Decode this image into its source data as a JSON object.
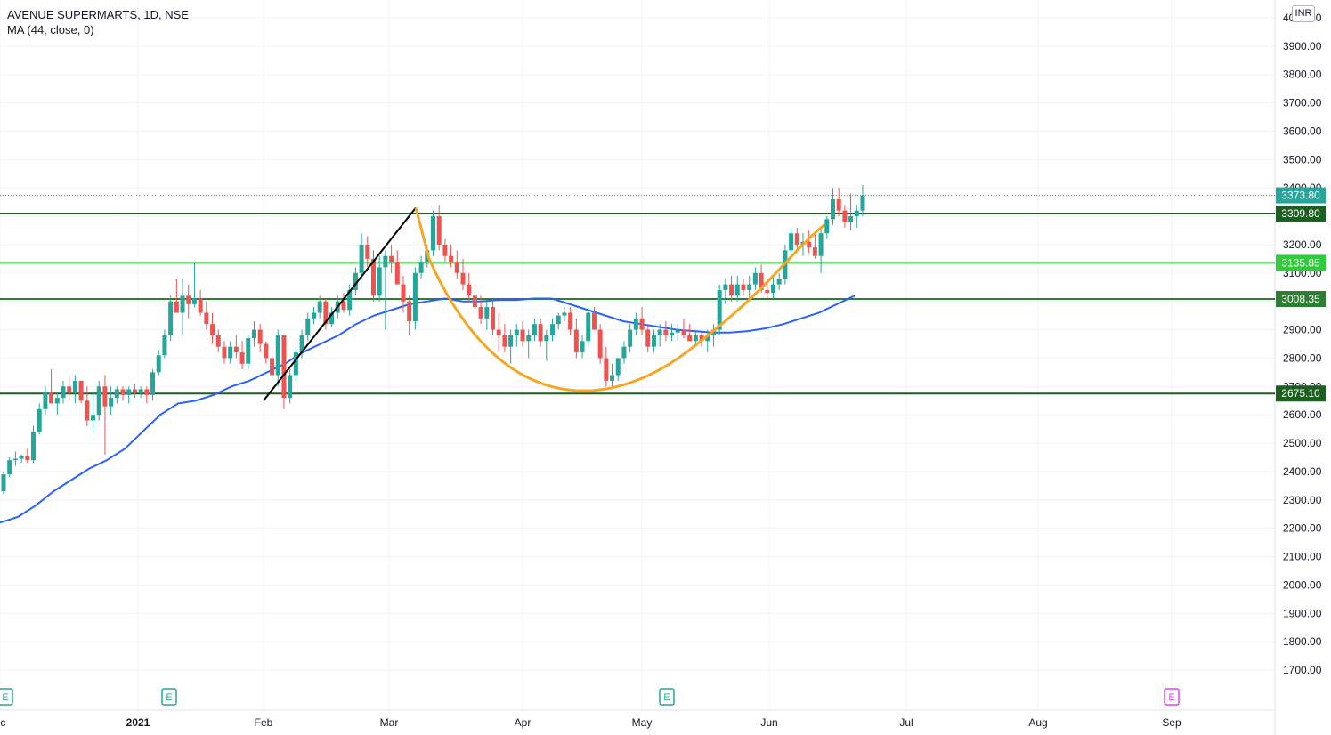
{
  "legend": {
    "symbol": "AVENUE SUPERMARTS, 1D, NSE",
    "indicator": "MA (44, close, 0)"
  },
  "price_axis": {
    "currency": "INR",
    "ticks": [
      "4000.00",
      "3900.00",
      "3800.00",
      "3700.00",
      "3600.00",
      "3500.00",
      "3400.00",
      "3300.00",
      "3200.00",
      "3100.00",
      "3000.00",
      "2900.00",
      "2800.00",
      "2700.00",
      "2600.00",
      "2500.00",
      "2400.00",
      "2300.00",
      "2200.00",
      "2100.00",
      "2000.00",
      "1900.00",
      "1800.00",
      "1700.00"
    ]
  },
  "time_axis": {
    "ticks": [
      "ec",
      "2021",
      "Feb",
      "Mar",
      "Apr",
      "May",
      "Jun",
      "Jul",
      "Aug",
      "Sep"
    ]
  },
  "earnings_markers": [
    "E",
    "E",
    "E",
    "E"
  ],
  "colors": {
    "up": "#26a69a",
    "down": "#ef5350",
    "ma": "#2962ff",
    "dark_green": "#1b5e20",
    "light_green": "#2ecc3a",
    "mid_green": "#2e7d32",
    "cup": "#f5a623",
    "trendline": "#000000",
    "last_price": "#26a69a"
  },
  "chart_data": {
    "type": "candlestick",
    "symbol": "AVENUE SUPERMARTS",
    "interval": "1D",
    "exchange": "NSE",
    "y_range": [
      1700,
      4000
    ],
    "last_price": 3373.8,
    "horizontal_levels": [
      {
        "value": 3309.8,
        "label": "3309.80",
        "color": "#1b5e20"
      },
      {
        "value": 3135.85,
        "label": "3135.85",
        "color": "#2ecc3a"
      },
      {
        "value": 3008.35,
        "label": "3008.35",
        "color": "#2e7d32"
      },
      {
        "value": 2675.1,
        "label": "2675.10",
        "color": "#1b5e20"
      }
    ],
    "candles_ohlc": [
      [
        2330,
        2400,
        2320,
        2390
      ],
      [
        2390,
        2450,
        2380,
        2440
      ],
      [
        2440,
        2470,
        2420,
        2445
      ],
      [
        2445,
        2460,
        2430,
        2455
      ],
      [
        2455,
        2480,
        2430,
        2440
      ],
      [
        2440,
        2560,
        2430,
        2540
      ],
      [
        2540,
        2640,
        2530,
        2620
      ],
      [
        2620,
        2700,
        2600,
        2680
      ],
      [
        2680,
        2760,
        2650,
        2640
      ],
      [
        2640,
        2680,
        2600,
        2660
      ],
      [
        2660,
        2720,
        2640,
        2700
      ],
      [
        2700,
        2740,
        2650,
        2680
      ],
      [
        2680,
        2740,
        2640,
        2720
      ],
      [
        2720,
        2720,
        2640,
        2650
      ],
      [
        2650,
        2700,
        2560,
        2580
      ],
      [
        2580,
        2680,
        2540,
        2600
      ],
      [
        2600,
        2720,
        2580,
        2700
      ],
      [
        2700,
        2740,
        2460,
        2630
      ],
      [
        2630,
        2700,
        2600,
        2660
      ],
      [
        2660,
        2700,
        2640,
        2690
      ],
      [
        2690,
        2700,
        2650,
        2670
      ],
      [
        2670,
        2700,
        2640,
        2690
      ],
      [
        2690,
        2710,
        2660,
        2680
      ],
      [
        2680,
        2700,
        2660,
        2690
      ],
      [
        2690,
        2700,
        2640,
        2670
      ],
      [
        2670,
        2760,
        2650,
        2750
      ],
      [
        2750,
        2830,
        2740,
        2810
      ],
      [
        2810,
        2900,
        2800,
        2880
      ],
      [
        2880,
        3020,
        2860,
        3000
      ],
      [
        3000,
        3080,
        2960,
        2960
      ],
      [
        2960,
        3080,
        2880,
        3020
      ],
      [
        3020,
        3060,
        2940,
        2990
      ],
      [
        2990,
        3140,
        2980,
        3010
      ],
      [
        3010,
        3040,
        2950,
        2960
      ],
      [
        2960,
        3000,
        2900,
        2920
      ],
      [
        2920,
        2960,
        2850,
        2880
      ],
      [
        2880,
        2900,
        2820,
        2840
      ],
      [
        2840,
        2860,
        2780,
        2800
      ],
      [
        2800,
        2860,
        2780,
        2840
      ],
      [
        2840,
        2880,
        2800,
        2820
      ],
      [
        2820,
        2860,
        2760,
        2780
      ],
      [
        2780,
        2880,
        2760,
        2870
      ],
      [
        2870,
        2930,
        2840,
        2900
      ],
      [
        2900,
        2920,
        2820,
        2850
      ],
      [
        2850,
        2860,
        2780,
        2800
      ],
      [
        2800,
        2840,
        2720,
        2740
      ],
      [
        2740,
        2900,
        2700,
        2880
      ],
      [
        2880,
        2870,
        2620,
        2660
      ],
      [
        2660,
        2760,
        2640,
        2740
      ],
      [
        2740,
        2840,
        2720,
        2820
      ],
      [
        2820,
        2900,
        2800,
        2880
      ],
      [
        2880,
        2960,
        2860,
        2940
      ],
      [
        2940,
        2980,
        2920,
        2960
      ],
      [
        2960,
        3020,
        2940,
        3000
      ],
      [
        3000,
        3010,
        2900,
        2920
      ],
      [
        2920,
        2980,
        2910,
        2960
      ],
      [
        2960,
        3020,
        2940,
        3000
      ],
      [
        3000,
        3030,
        2960,
        2970
      ],
      [
        2970,
        3060,
        2950,
        3040
      ],
      [
        3040,
        3120,
        3020,
        3100
      ],
      [
        3100,
        3240,
        3080,
        3200
      ],
      [
        3200,
        3230,
        3120,
        3150
      ],
      [
        3150,
        3180,
        3000,
        3020
      ],
      [
        3020,
        3160,
        3000,
        3120
      ],
      [
        3120,
        3180,
        2900,
        3160
      ],
      [
        3160,
        3200,
        3100,
        3140
      ],
      [
        3140,
        3180,
        3060,
        3060
      ],
      [
        3060,
        3090,
        2960,
        3000
      ],
      [
        3000,
        3020,
        2880,
        2930
      ],
      [
        2930,
        3120,
        2900,
        3100
      ],
      [
        3100,
        3160,
        3080,
        3140
      ],
      [
        3140,
        3200,
        3120,
        3180
      ],
      [
        3180,
        3320,
        3160,
        3300
      ],
      [
        3300,
        3340,
        3180,
        3200
      ],
      [
        3200,
        3220,
        3140,
        3160
      ],
      [
        3160,
        3200,
        3120,
        3140
      ],
      [
        3140,
        3180,
        3080,
        3100
      ],
      [
        3100,
        3150,
        3040,
        3060
      ],
      [
        3060,
        3100,
        3000,
        3020
      ],
      [
        3020,
        3060,
        2960,
        2980
      ],
      [
        2980,
        3020,
        2920,
        2940
      ],
      [
        2940,
        3000,
        2900,
        2980
      ],
      [
        2980,
        3010,
        2880,
        2900
      ],
      [
        2900,
        2960,
        2820,
        2880
      ],
      [
        2880,
        2920,
        2820,
        2840
      ],
      [
        2840,
        2900,
        2780,
        2880
      ],
      [
        2880,
        2920,
        2840,
        2900
      ],
      [
        2900,
        2930,
        2840,
        2860
      ],
      [
        2860,
        2900,
        2800,
        2880
      ],
      [
        2880,
        2940,
        2860,
        2920
      ],
      [
        2920,
        2940,
        2840,
        2860
      ],
      [
        2860,
        2900,
        2790,
        2880
      ],
      [
        2880,
        2940,
        2860,
        2920
      ],
      [
        2920,
        2960,
        2900,
        2950
      ],
      [
        2950,
        2980,
        2930,
        2960
      ],
      [
        2960,
        2980,
        2880,
        2900
      ],
      [
        2900,
        2940,
        2800,
        2820
      ],
      [
        2820,
        2880,
        2800,
        2860
      ],
      [
        2860,
        2980,
        2840,
        2960
      ],
      [
        2960,
        2980,
        2900,
        2900
      ],
      [
        2900,
        2920,
        2780,
        2800
      ],
      [
        2800,
        2840,
        2700,
        2720
      ],
      [
        2720,
        2780,
        2700,
        2740
      ],
      [
        2740,
        2800,
        2720,
        2800
      ],
      [
        2800,
        2860,
        2780,
        2840
      ],
      [
        2840,
        2920,
        2820,
        2900
      ],
      [
        2900,
        2960,
        2880,
        2940
      ],
      [
        2940,
        2980,
        2880,
        2900
      ],
      [
        2900,
        2920,
        2820,
        2840
      ],
      [
        2840,
        2900,
        2820,
        2880
      ],
      [
        2880,
        2920,
        2840,
        2900
      ],
      [
        2900,
        2930,
        2860,
        2880
      ],
      [
        2880,
        2920,
        2860,
        2890
      ],
      [
        2890,
        2920,
        2860,
        2900
      ],
      [
        2900,
        2940,
        2870,
        2880
      ],
      [
        2880,
        2920,
        2860,
        2860
      ],
      [
        2860,
        2900,
        2840,
        2880
      ],
      [
        2880,
        2890,
        2840,
        2860
      ],
      [
        2860,
        2900,
        2820,
        2880
      ],
      [
        2880,
        2920,
        2840,
        2900
      ],
      [
        2900,
        3060,
        2880,
        3040
      ],
      [
        3040,
        3080,
        2990,
        3060
      ],
      [
        3060,
        3090,
        3000,
        3020
      ],
      [
        3020,
        3090,
        3000,
        3060
      ],
      [
        3060,
        3080,
        3020,
        3040
      ],
      [
        3040,
        3090,
        3000,
        3060
      ],
      [
        3060,
        3120,
        3040,
        3100
      ],
      [
        3100,
        3130,
        3030,
        3040
      ],
      [
        3040,
        3080,
        3010,
        3030
      ],
      [
        3030,
        3090,
        3010,
        3060
      ],
      [
        3060,
        3100,
        3040,
        3080
      ],
      [
        3080,
        3200,
        3060,
        3180
      ],
      [
        3180,
        3260,
        3160,
        3240
      ],
      [
        3240,
        3260,
        3180,
        3200
      ],
      [
        3200,
        3240,
        3160,
        3210
      ],
      [
        3210,
        3250,
        3170,
        3190
      ],
      [
        3190,
        3240,
        3150,
        3160
      ],
      [
        3160,
        3260,
        3100,
        3240
      ],
      [
        3240,
        3300,
        3220,
        3290
      ],
      [
        3290,
        3400,
        3270,
        3360
      ],
      [
        3360,
        3400,
        3300,
        3320
      ],
      [
        3320,
        3340,
        3260,
        3280
      ],
      [
        3280,
        3380,
        3250,
        3300
      ],
      [
        3300,
        3340,
        3260,
        3320
      ],
      [
        3320,
        3410,
        3300,
        3374
      ]
    ],
    "ma44_points": [
      [
        0,
        2220
      ],
      [
        20,
        2240
      ],
      [
        40,
        2280
      ],
      [
        60,
        2330
      ],
      [
        80,
        2370
      ],
      [
        100,
        2410
      ],
      [
        120,
        2440
      ],
      [
        140,
        2480
      ],
      [
        160,
        2540
      ],
      [
        180,
        2600
      ],
      [
        200,
        2640
      ],
      [
        220,
        2650
      ],
      [
        240,
        2670
      ],
      [
        260,
        2700
      ],
      [
        280,
        2720
      ],
      [
        300,
        2750
      ],
      [
        320,
        2780
      ],
      [
        340,
        2820
      ],
      [
        360,
        2850
      ],
      [
        380,
        2880
      ],
      [
        400,
        2920
      ],
      [
        420,
        2950
      ],
      [
        440,
        2970
      ],
      [
        460,
        2990
      ],
      [
        480,
        3000
      ],
      [
        500,
        3010
      ],
      [
        520,
        3000
      ],
      [
        540,
        3000
      ],
      [
        560,
        3005
      ],
      [
        580,
        3005
      ],
      [
        600,
        3010
      ],
      [
        620,
        3010
      ],
      [
        640,
        2990
      ],
      [
        660,
        2970
      ],
      [
        680,
        2950
      ],
      [
        700,
        2930
      ],
      [
        720,
        2920
      ],
      [
        740,
        2910
      ],
      [
        760,
        2900
      ],
      [
        780,
        2895
      ],
      [
        800,
        2890
      ],
      [
        820,
        2890
      ],
      [
        840,
        2895
      ],
      [
        860,
        2905
      ],
      [
        880,
        2920
      ],
      [
        900,
        2940
      ],
      [
        920,
        2960
      ],
      [
        940,
        2990
      ],
      [
        960,
        3020
      ]
    ],
    "time_labels": [
      "ec",
      "2021",
      "Feb",
      "Mar",
      "Apr",
      "May",
      "Jun",
      "Jul",
      "Aug",
      "Sep"
    ]
  }
}
